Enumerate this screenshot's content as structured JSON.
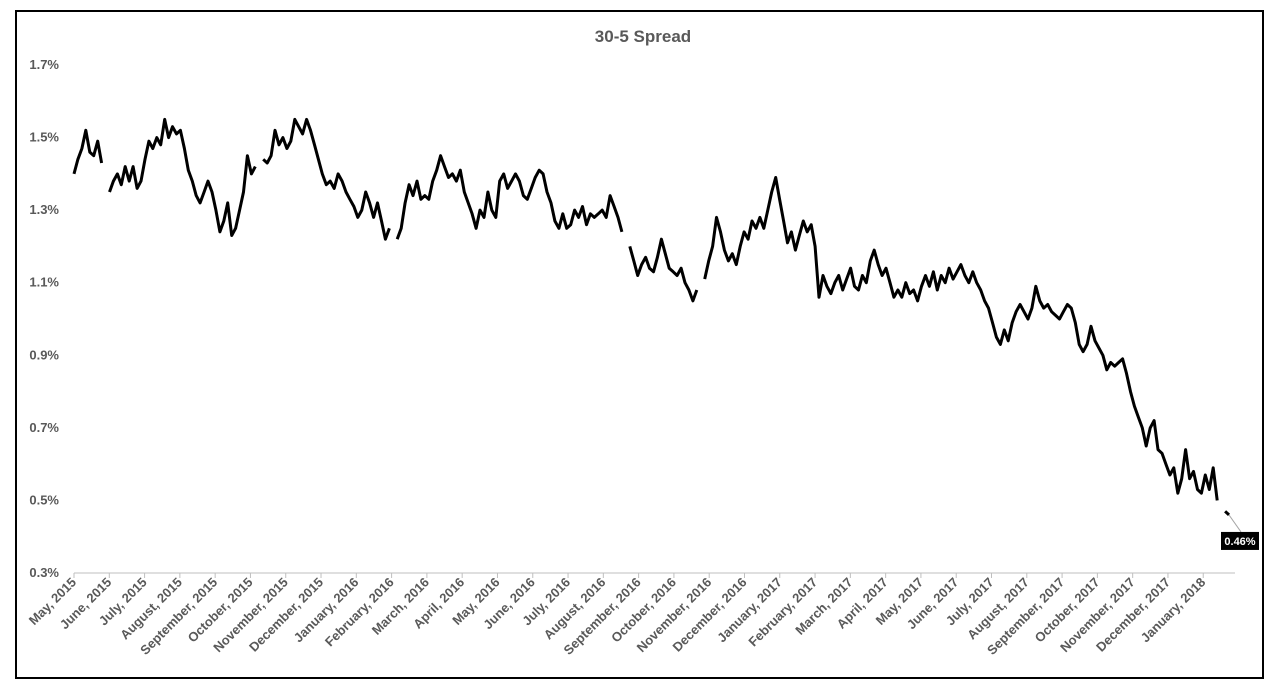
{
  "chart_data": {
    "type": "line",
    "title": "30-5 Spread",
    "xlabel": "",
    "ylabel": "",
    "ylim": [
      0.3,
      1.7
    ],
    "y_ticks": [
      "1.7%",
      "1.5%",
      "1.3%",
      "1.1%",
      "0.9%",
      "0.7%",
      "0.5%",
      "0.3%"
    ],
    "y_tick_values": [
      1.7,
      1.5,
      1.3,
      1.1,
      0.9,
      0.7,
      0.5,
      0.3
    ],
    "x_ticks": [
      "May, 2015",
      "June, 2015",
      "July, 2015",
      "August, 2015",
      "September, 2015",
      "October, 2015",
      "November, 2015",
      "December, 2015",
      "January, 2016",
      "February, 2016",
      "March, 2016",
      "April, 2016",
      "May, 2016",
      "June, 2016",
      "July, 2016",
      "August, 2016",
      "September, 2016",
      "October, 2016",
      "November, 2016",
      "December, 2016",
      "January, 2017",
      "February, 2017",
      "March, 2017",
      "April, 2017",
      "May, 2017",
      "June, 2017",
      "July, 2017",
      "August, 2017",
      "September, 2017",
      "October, 2017",
      "November, 2017",
      "December, 2017",
      "January, 2018"
    ],
    "grid": false,
    "legend": "none",
    "line_color": "#000000",
    "series": [
      {
        "values": [
          1.4,
          1.44,
          1.47,
          1.52,
          1.46,
          1.45,
          1.49,
          1.43,
          null,
          1.35,
          1.38,
          1.4,
          1.37,
          1.42,
          1.38,
          1.42,
          1.36,
          1.38,
          1.44,
          1.49,
          1.47,
          1.5,
          1.48,
          1.55,
          1.5,
          1.53,
          1.51,
          1.52,
          1.47,
          1.41,
          1.38,
          1.34,
          1.32,
          1.35,
          1.38,
          1.35,
          1.3,
          1.24,
          1.27,
          1.32,
          1.23,
          1.25,
          1.3,
          1.35,
          1.45,
          1.4,
          1.42,
          null,
          1.44,
          1.43,
          1.45,
          1.52,
          1.48,
          1.5,
          1.47,
          1.49,
          1.55,
          1.53,
          1.51,
          1.55,
          1.52,
          1.48,
          1.44,
          1.4,
          1.37,
          1.38,
          1.36,
          1.4,
          1.38,
          1.35,
          1.33,
          1.31,
          1.28,
          1.3,
          1.35,
          1.32,
          1.28,
          1.32,
          1.27,
          1.22,
          1.25,
          null,
          1.22,
          1.25,
          1.32,
          1.37,
          1.34,
          1.38,
          1.33,
          1.34,
          1.33,
          1.38,
          1.41,
          1.45,
          1.42,
          1.39,
          1.4,
          1.38,
          1.41,
          1.35,
          1.32,
          1.29,
          1.25,
          1.3,
          1.28,
          1.35,
          1.3,
          1.28,
          1.38,
          1.4,
          1.36,
          1.38,
          1.4,
          1.38,
          1.34,
          1.33,
          1.36,
          1.39,
          1.41,
          1.4,
          1.35,
          1.32,
          1.27,
          1.25,
          1.29,
          1.25,
          1.26,
          1.3,
          1.28,
          1.31,
          1.26,
          1.29,
          1.28,
          1.29,
          1.3,
          1.28,
          1.34,
          1.31,
          1.28,
          1.24,
          null,
          1.2,
          1.16,
          1.12,
          1.15,
          1.17,
          1.14,
          1.13,
          1.17,
          1.22,
          1.18,
          1.14,
          1.13,
          1.12,
          1.14,
          1.1,
          1.08,
          1.05,
          1.08,
          null,
          1.11,
          1.16,
          1.2,
          1.28,
          1.24,
          1.19,
          1.16,
          1.18,
          1.15,
          1.2,
          1.24,
          1.22,
          1.27,
          1.25,
          1.28,
          1.25,
          1.3,
          1.35,
          1.39,
          1.33,
          1.27,
          1.21,
          1.24,
          1.19,
          1.23,
          1.27,
          1.24,
          1.26,
          1.2,
          1.06,
          1.12,
          1.09,
          1.07,
          1.1,
          1.12,
          1.08,
          1.11,
          1.14,
          1.09,
          1.08,
          1.12,
          1.1,
          1.16,
          1.19,
          1.15,
          1.12,
          1.14,
          1.1,
          1.06,
          1.08,
          1.06,
          1.1,
          1.07,
          1.08,
          1.05,
          1.09,
          1.12,
          1.09,
          1.13,
          1.08,
          1.12,
          1.1,
          1.14,
          1.11,
          1.13,
          1.15,
          1.12,
          1.1,
          1.13,
          1.1,
          1.08,
          1.05,
          1.03,
          0.99,
          0.95,
          0.93,
          0.97,
          0.94,
          0.99,
          1.02,
          1.04,
          1.02,
          1.0,
          1.03,
          1.09,
          1.05,
          1.03,
          1.04,
          1.02,
          1.01,
          1.0,
          1.02,
          1.04,
          1.03,
          0.99,
          0.93,
          0.91,
          0.93,
          0.98,
          0.94,
          0.92,
          0.9,
          0.86,
          0.88,
          0.87,
          0.88,
          0.89,
          0.85,
          0.8,
          0.76,
          0.73,
          0.7,
          0.65,
          0.7,
          0.72,
          0.64,
          0.63,
          0.6,
          0.57,
          0.59,
          0.52,
          0.56,
          0.64,
          0.56,
          0.58,
          0.53,
          0.52,
          0.57,
          0.53,
          0.59,
          0.5,
          null,
          0.47,
          0.46
        ]
      }
    ],
    "end_label": "0.46%"
  }
}
